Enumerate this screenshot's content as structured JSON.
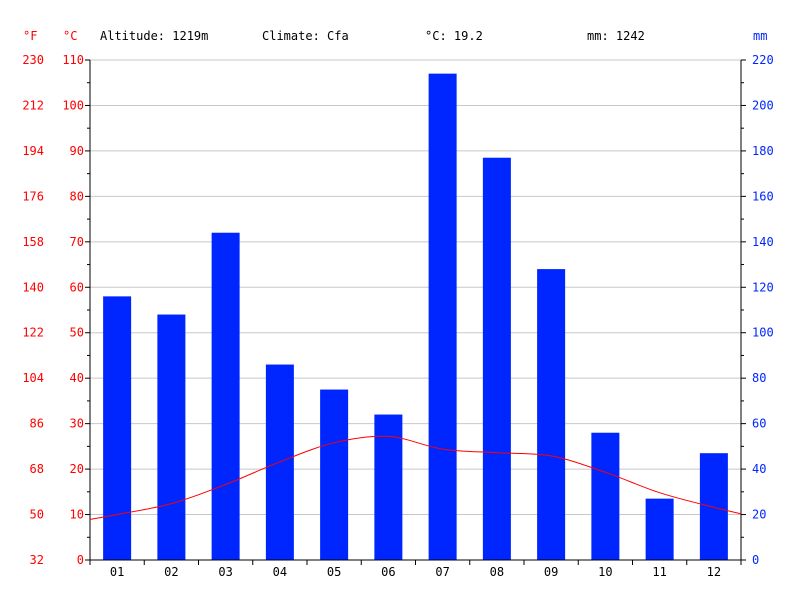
{
  "header": {
    "altitude": "Altitude: 1219m",
    "climate": "Climate: Cfa",
    "avg_temp": "°C: 19.2",
    "precip_total": "mm: 1242",
    "unit_f": "°F",
    "unit_c": "°C",
    "unit_mm": "mm"
  },
  "colors": {
    "precip_bar": "#0026ff",
    "temperature_line": "#ff0000",
    "left_axis_text": "#ff0000",
    "right_axis_text": "#0026ff",
    "grid": "#c8c8c8",
    "axis": "#000000"
  },
  "chart_data": {
    "type": "bar",
    "categories": [
      "01",
      "02",
      "03",
      "04",
      "05",
      "06",
      "07",
      "08",
      "09",
      "10",
      "11",
      "12"
    ],
    "series": [
      {
        "type": "bar",
        "axis": "right",
        "unit": "mm",
        "values": [
          116,
          108,
          144,
          86,
          75,
          64,
          214,
          177,
          128,
          56,
          27,
          47
        ]
      },
      {
        "type": "line",
        "axis": "left",
        "unit": "°C",
        "values": [
          10.0,
          12.4,
          16.6,
          21.6,
          25.8,
          27.2,
          24.4,
          23.6,
          22.9,
          19.3,
          14.8,
          11.6
        ]
      }
    ],
    "ylim_c": [
      0,
      110
    ],
    "ylim_mm": [
      0,
      220
    ],
    "ylim_f": [
      32,
      230
    ],
    "c_ticks": [
      "0",
      "10",
      "20",
      "30",
      "40",
      "50",
      "60",
      "70",
      "80",
      "90",
      "100",
      "110"
    ],
    "f_ticks": [
      "32",
      "50",
      "68",
      "86",
      "104",
      "122",
      "140",
      "158",
      "176",
      "194",
      "212",
      "230"
    ],
    "mm_ticks": [
      "0",
      "20",
      "40",
      "60",
      "80",
      "100",
      "120",
      "140",
      "160",
      "180",
      "200",
      "220"
    ],
    "grid": true
  }
}
